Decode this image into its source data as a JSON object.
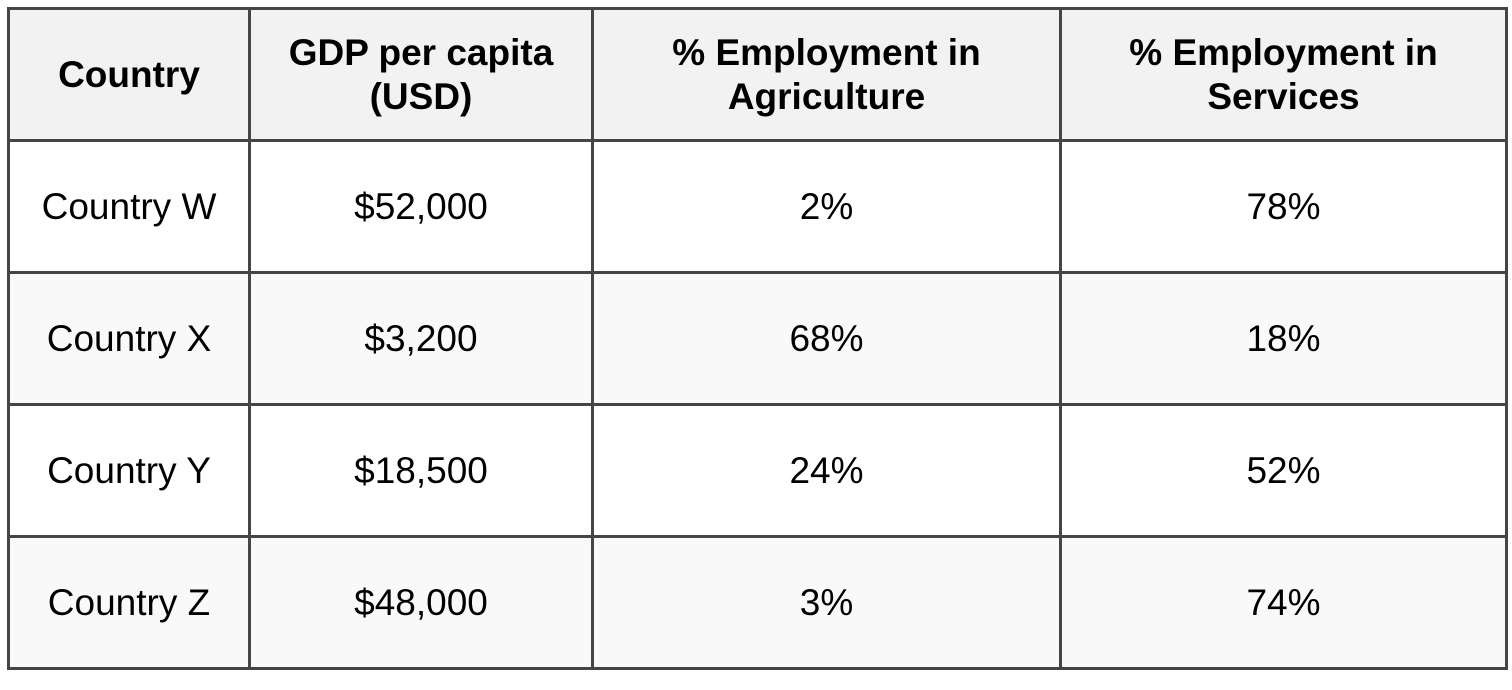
{
  "chart_data": {
    "type": "table",
    "columns": [
      "Country",
      "GDP per capita (USD)",
      "% Employment in Agriculture",
      "% Employment in Services"
    ],
    "rows": [
      [
        "Country W",
        "$52,000",
        "2%",
        "78%"
      ],
      [
        "Country X",
        "$3,200",
        "68%",
        "18%"
      ],
      [
        "Country Y",
        "$18,500",
        "24%",
        "52%"
      ],
      [
        "Country Z",
        "$48,000",
        "3%",
        "74%"
      ]
    ]
  },
  "colors": {
    "header_bg": "#f2f2f2",
    "border": "#454545",
    "alt_row_bg": "#f9f9f9"
  }
}
